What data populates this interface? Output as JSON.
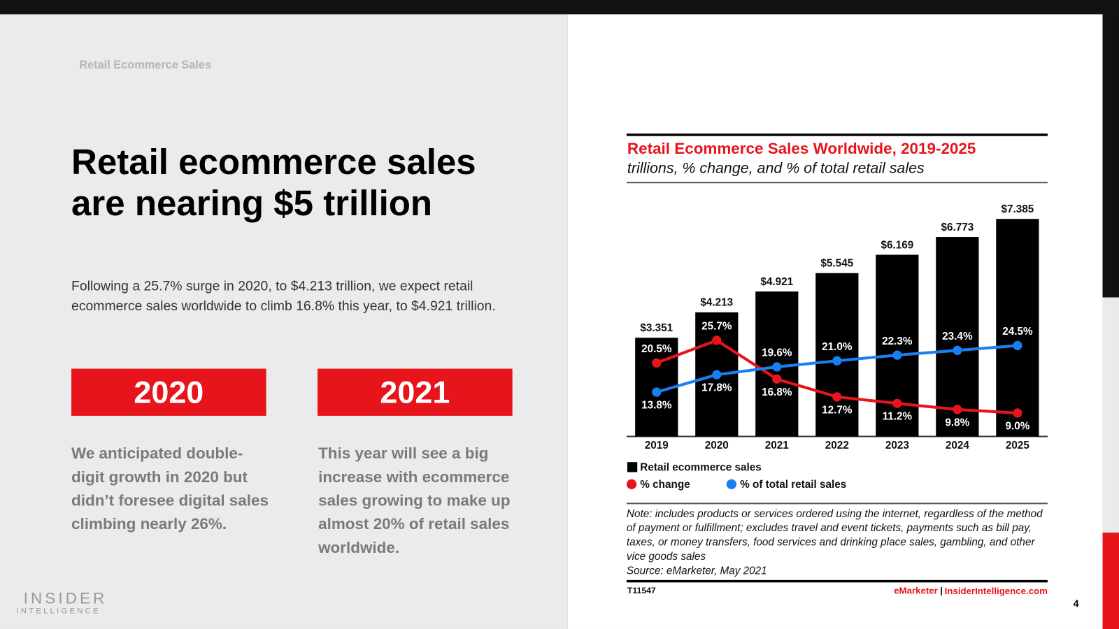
{
  "slide": {
    "kicker": "Retail Ecommerce Sales",
    "headline": "Retail ecommerce sales are nearing $5 trillion",
    "intro": "Following a 25.7% surge in 2020, to $4.213 trillion, we expect retail ecommerce sales worldwide to climb 16.8% this year, to $4.921 trillion.",
    "cards": [
      {
        "year": "2020",
        "text": "We anticipated double-digit growth in 2020 but didn’t foresee digital sales climbing nearly 26%."
      },
      {
        "year": "2021",
        "text": "This year will see a big increase with ecommerce sales growing to make up almost 20% of retail sales worldwide."
      }
    ],
    "logo": {
      "top": "INSIDER",
      "bottom": "INTELLIGENCE"
    },
    "page": "4"
  },
  "chart_data": {
    "type": "combo",
    "title": "Retail Ecommerce Sales Worldwide, 2019-2025",
    "subtitle": "trillions, % change, and % of total retail sales",
    "categories": [
      "2019",
      "2020",
      "2021",
      "2022",
      "2023",
      "2024",
      "2025"
    ],
    "series": [
      {
        "name": "Retail ecommerce sales",
        "type": "bar",
        "color": "#000000",
        "values": [
          3.351,
          4.213,
          4.921,
          5.545,
          6.169,
          6.773,
          7.385
        ],
        "value_labels": [
          "$3.351",
          "$4.213",
          "$4.921",
          "$5.545",
          "$6.169",
          "$6.773",
          "$7.385"
        ]
      },
      {
        "name": "% change",
        "type": "line",
        "color": "#e8141b",
        "values": [
          20.5,
          25.7,
          16.8,
          12.7,
          11.2,
          9.8,
          9.0
        ],
        "value_labels": [
          "20.5%",
          "25.7%",
          "16.8%",
          "12.7%",
          "11.2%",
          "9.8%",
          "9.0%"
        ]
      },
      {
        "name": "% of total retail sales",
        "type": "line",
        "color": "#1a7ff0",
        "values": [
          13.8,
          17.8,
          19.6,
          21.0,
          22.3,
          23.4,
          24.5
        ],
        "value_labels": [
          "13.8%",
          "17.8%",
          "19.6%",
          "21.0%",
          "22.3%",
          "23.4%",
          "24.5%"
        ]
      }
    ],
    "note": "Note: includes products or services ordered using the internet, regardless of the method of payment or fulfillment; excludes travel and event tickets, payments such as bill pay, taxes, or money transfers, food services and drinking place sales, gambling, and other vice goods sales",
    "source": "Source: eMarketer, May 2021",
    "footer": {
      "id": "T11547",
      "publisher": "eMarketer",
      "separator": "|",
      "site": "InsiderIntelligence.com"
    }
  }
}
